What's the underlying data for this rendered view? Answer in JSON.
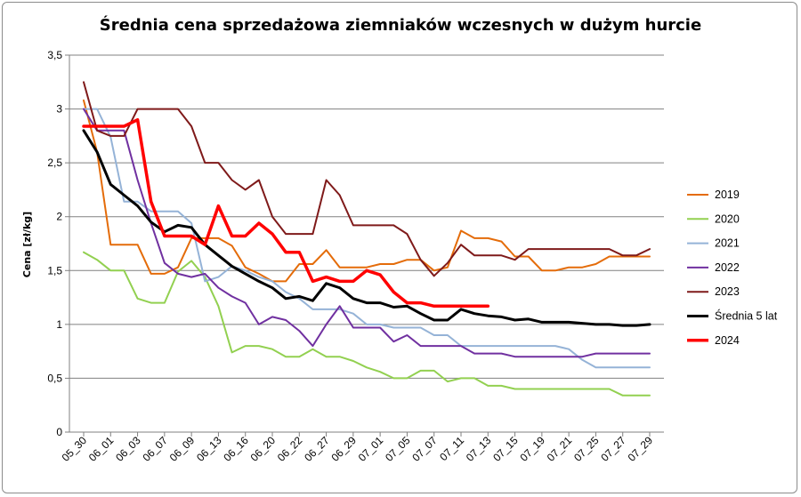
{
  "chart_data": {
    "type": "line",
    "title": "Średnia cena sprzedażowa ziemniaków  wczesnych w dużym hurcie",
    "ylabel": "Cena [zł/kg]",
    "xlabel": "",
    "ylim": [
      0,
      3.5
    ],
    "y_ticks": [
      "0",
      "0,5",
      "1",
      "1,5",
      "2",
      "2,5",
      "3",
      "3,5"
    ],
    "x_tick_labels": [
      "05_30",
      "06_01",
      "06_03",
      "06_07",
      "06_09",
      "06_13",
      "06_16",
      "06_20",
      "06_22",
      "06_27",
      "06_29",
      "07_01",
      "07_05",
      "07_07",
      "07_11",
      "07_13",
      "07_15",
      "07_19",
      "07_21",
      "07_25",
      "07_27",
      "07_29"
    ],
    "grid": "horizontal",
    "legend_position": "right",
    "series": [
      {
        "name": "2019",
        "color": "#E46C0A",
        "width": 2,
        "values": [
          3.08,
          2.6,
          1.74,
          1.74,
          1.74,
          1.47,
          1.47,
          1.53,
          1.8,
          1.8,
          1.8,
          1.73,
          1.53,
          1.47,
          1.4,
          1.4,
          1.56,
          1.56,
          1.69,
          1.53,
          1.53,
          1.53,
          1.56,
          1.56,
          1.6,
          1.6,
          1.5,
          1.53,
          1.87,
          1.8,
          1.8,
          1.77,
          1.63,
          1.63,
          1.5,
          1.5,
          1.53,
          1.53,
          1.56,
          1.63,
          1.63,
          1.63,
          1.63
        ]
      },
      {
        "name": "2020",
        "color": "#92D050",
        "width": 2,
        "values": [
          1.67,
          1.6,
          1.5,
          1.5,
          1.24,
          1.2,
          1.2,
          1.49,
          1.59,
          1.44,
          1.17,
          0.74,
          0.8,
          0.8,
          0.77,
          0.7,
          0.7,
          0.77,
          0.7,
          0.7,
          0.66,
          0.6,
          0.56,
          0.5,
          0.5,
          0.57,
          0.57,
          0.47,
          0.5,
          0.5,
          0.43,
          0.43,
          0.4,
          0.4,
          0.4,
          0.4,
          0.4,
          0.4,
          0.4,
          0.4,
          0.34,
          0.34,
          0.34
        ]
      },
      {
        "name": "2021",
        "color": "#95B3D7",
        "width": 2,
        "values": [
          3.0,
          3.0,
          2.74,
          2.14,
          2.14,
          2.05,
          2.05,
          2.05,
          1.94,
          1.4,
          1.44,
          1.54,
          1.5,
          1.44,
          1.4,
          1.3,
          1.24,
          1.14,
          1.14,
          1.14,
          1.1,
          1.0,
          1.0,
          0.97,
          0.97,
          0.97,
          0.9,
          0.9,
          0.8,
          0.8,
          0.8,
          0.8,
          0.8,
          0.8,
          0.8,
          0.8,
          0.77,
          0.67,
          0.6,
          0.6,
          0.6,
          0.6,
          0.6
        ]
      },
      {
        "name": "2022",
        "color": "#7030A0",
        "width": 2,
        "values": [
          3.0,
          2.8,
          2.8,
          2.8,
          2.34,
          1.94,
          1.57,
          1.47,
          1.44,
          1.47,
          1.34,
          1.26,
          1.2,
          1.0,
          1.07,
          1.04,
          0.94,
          0.8,
          1.0,
          1.17,
          0.97,
          0.97,
          0.97,
          0.84,
          0.9,
          0.8,
          0.8,
          0.8,
          0.8,
          0.73,
          0.73,
          0.73,
          0.7,
          0.7,
          0.7,
          0.7,
          0.7,
          0.7,
          0.73,
          0.73,
          0.73,
          0.73,
          0.73
        ]
      },
      {
        "name": "2023",
        "color": "#7F1A1A",
        "width": 2,
        "values": [
          3.25,
          2.8,
          2.75,
          2.75,
          3.0,
          3.0,
          3.0,
          3.0,
          2.84,
          2.5,
          2.5,
          2.34,
          2.25,
          2.34,
          2.0,
          1.84,
          1.84,
          1.84,
          2.34,
          2.2,
          1.92,
          1.92,
          1.92,
          1.92,
          1.84,
          1.6,
          1.45,
          1.57,
          1.74,
          1.64,
          1.64,
          1.64,
          1.6,
          1.7,
          1.7,
          1.7,
          1.7,
          1.7,
          1.7,
          1.7,
          1.64,
          1.64,
          1.7
        ]
      },
      {
        "name": "Średnia 5 lat",
        "color": "#000000",
        "width": 3,
        "values": [
          2.8,
          2.6,
          2.3,
          2.2,
          2.1,
          1.95,
          1.86,
          1.92,
          1.9,
          1.74,
          1.64,
          1.54,
          1.47,
          1.4,
          1.34,
          1.24,
          1.26,
          1.22,
          1.38,
          1.34,
          1.24,
          1.2,
          1.2,
          1.16,
          1.17,
          1.1,
          1.04,
          1.04,
          1.14,
          1.1,
          1.08,
          1.07,
          1.04,
          1.05,
          1.02,
          1.02,
          1.02,
          1.01,
          1.0,
          1.0,
          0.99,
          0.99,
          1.0
        ]
      },
      {
        "name": "2024",
        "color": "#FF0000",
        "width": 3.5,
        "values": [
          2.84,
          2.84,
          2.84,
          2.84,
          2.9,
          2.14,
          1.82,
          1.82,
          1.82,
          1.74,
          2.1,
          1.82,
          1.82,
          1.94,
          1.84,
          1.67,
          1.67,
          1.4,
          1.44,
          1.4,
          1.4,
          1.5,
          1.46,
          1.3,
          1.2,
          1.2,
          1.17,
          1.17,
          1.17,
          1.17,
          1.17
        ]
      }
    ]
  }
}
